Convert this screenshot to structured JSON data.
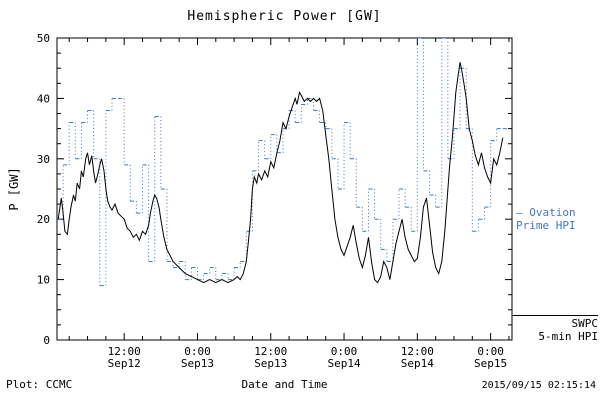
{
  "header": {
    "title": "Hemispheric Power [GW]"
  },
  "axes": {
    "ylabel": "P [GW]",
    "xlabel": "Date and Time"
  },
  "footer": {
    "plot_credit": "Plot: CCMC",
    "timestamp": "2015/09/15 02:15:14"
  },
  "legend": {
    "ovation": {
      "line1": "– Ovation",
      "line2": "Prime HPI",
      "color": "#4477bb"
    },
    "swpc": {
      "line1": "SWPC",
      "line2": "5-min HPI",
      "color": "#000000"
    }
  },
  "chart_data": {
    "type": "line",
    "title": "Hemispheric Power [GW]",
    "xlabel": "Date and Time",
    "ylabel": "P [GW]",
    "ylim": [
      0,
      50
    ],
    "xlim": [
      1,
      75.5
    ],
    "x_unit": "hours since 2015-09-12 00:00 UT",
    "grid": false,
    "legend_position": "right-outside",
    "y_ticks": [
      0,
      10,
      20,
      30,
      40,
      50
    ],
    "x_ticks": [
      {
        "pos": 12,
        "time": "12:00",
        "date": "Sep12"
      },
      {
        "pos": 24,
        "time": "0:00",
        "date": "Sep13"
      },
      {
        "pos": 36,
        "time": "12:00",
        "date": "Sep13"
      },
      {
        "pos": 48,
        "time": "0:00",
        "date": "Sep14"
      },
      {
        "pos": 60,
        "time": "12:00",
        "date": "Sep14"
      },
      {
        "pos": 72,
        "time": "0:00",
        "date": "Sep15"
      }
    ],
    "series": [
      {
        "name": "Ovation Prime HPI",
        "type": "step",
        "color": "#4477bb",
        "x": [
          1,
          2,
          3,
          4,
          5,
          6,
          7,
          8,
          9,
          10,
          11,
          12,
          13,
          14,
          15,
          16,
          17,
          18,
          19,
          20,
          21,
          22,
          23,
          24,
          25,
          26,
          27,
          28,
          29,
          30,
          31,
          32,
          33,
          34,
          35,
          36,
          37,
          38,
          39,
          40,
          41,
          42,
          43,
          44,
          45,
          46,
          47,
          48,
          49,
          50,
          51,
          52,
          53,
          54,
          55,
          56,
          57,
          58,
          59,
          60,
          61,
          62,
          63,
          64,
          65,
          66,
          67,
          68,
          69,
          70,
          71,
          72,
          73,
          74
        ],
        "y": [
          20,
          29,
          36,
          30,
          36,
          38,
          30,
          9,
          38,
          40,
          40,
          29,
          23,
          21,
          29,
          13,
          37,
          25,
          13,
          12,
          13,
          10,
          12,
          10,
          11,
          12,
          10,
          11,
          10,
          12,
          13,
          18,
          28,
          33,
          30,
          34,
          31,
          35,
          38,
          36,
          39,
          40,
          38,
          36,
          35,
          30,
          25,
          36,
          30,
          22,
          18,
          25,
          20,
          15,
          13,
          20,
          25,
          22,
          18,
          50,
          28,
          24,
          22,
          50,
          30,
          35,
          45,
          35,
          18,
          20,
          22,
          33,
          35,
          35
        ]
      },
      {
        "name": "SWPC 5-min HPI",
        "type": "line",
        "color": "#000000",
        "x": [
          1.2,
          1.7,
          2,
          2.3,
          2.7,
          3,
          3.3,
          3.7,
          4,
          4.3,
          4.7,
          5,
          5.3,
          5.7,
          6,
          6.3,
          6.7,
          7,
          7.3,
          7.7,
          8,
          8.3,
          8.7,
          9,
          9.3,
          9.7,
          10,
          10.5,
          11,
          11.5,
          12,
          12.5,
          13,
          13.5,
          14,
          14.5,
          15,
          15.5,
          16,
          16.3,
          16.7,
          17,
          17.3,
          17.7,
          18,
          18.5,
          19,
          19.5,
          20,
          20.5,
          21,
          22,
          23,
          24,
          25,
          26,
          27,
          28,
          29,
          30,
          30.5,
          31,
          31.5,
          32,
          32.3,
          32.7,
          33,
          33.3,
          33.7,
          34,
          34.5,
          35,
          35.5,
          36,
          36.5,
          37,
          37.5,
          38,
          38.5,
          39,
          39.5,
          40,
          40.3,
          40.7,
          41,
          41.5,
          42,
          42.5,
          43,
          43.5,
          44,
          44.5,
          45,
          45.5,
          46,
          46.5,
          47,
          47.5,
          48,
          48.5,
          49,
          49.5,
          50,
          50.5,
          51,
          51.5,
          52,
          52.5,
          53,
          53.5,
          54,
          54.5,
          55,
          55.5,
          56,
          56.5,
          57,
          57.5,
          58,
          58.5,
          59,
          59.5,
          60,
          60.5,
          61,
          61.5,
          62,
          62.5,
          63,
          63.5,
          64,
          64.5,
          65,
          65.3,
          65.7,
          66,
          66.3,
          66.7,
          67,
          67.3,
          67.7,
          68,
          68.5,
          69,
          69.5,
          70,
          70.5,
          71,
          71.5,
          72,
          72.5,
          73,
          73.5,
          74
        ],
        "y": [
          20,
          23.5,
          21,
          18,
          17.5,
          20,
          22,
          24,
          23,
          26,
          25,
          28,
          27,
          30,
          31,
          29,
          30.5,
          28,
          26,
          27.5,
          29,
          30,
          28,
          25,
          23,
          22,
          21.5,
          22.5,
          21,
          20.5,
          20,
          18.5,
          18,
          17,
          17.5,
          16.5,
          18,
          17.5,
          19,
          21,
          23,
          24,
          23.5,
          22,
          20,
          17,
          15,
          14,
          13,
          12.5,
          12,
          11,
          10.5,
          10,
          9.5,
          10,
          9.5,
          10,
          9.5,
          10,
          10.5,
          10,
          11,
          13,
          16,
          20,
          25,
          27,
          26,
          27.5,
          26.5,
          28,
          27,
          29.5,
          28.5,
          31,
          33,
          36,
          35,
          37,
          38.5,
          40,
          39,
          41,
          40.5,
          39.5,
          40,
          39.5,
          40,
          39.5,
          40,
          38,
          34,
          30,
          25,
          20,
          17,
          15,
          14,
          15.5,
          17,
          19,
          16,
          13.5,
          12,
          14,
          17,
          13,
          10,
          9.5,
          10.5,
          13,
          12,
          10,
          13,
          16,
          18,
          20,
          17,
          15,
          14,
          13,
          13.5,
          17,
          22,
          23.5,
          19,
          14.5,
          12,
          11,
          13,
          18,
          25,
          29,
          33,
          37,
          41,
          44,
          46,
          44.5,
          42,
          40,
          35,
          33,
          30.5,
          29,
          31,
          28.5,
          27,
          26,
          30,
          29,
          31,
          33.5
        ]
      }
    ]
  }
}
